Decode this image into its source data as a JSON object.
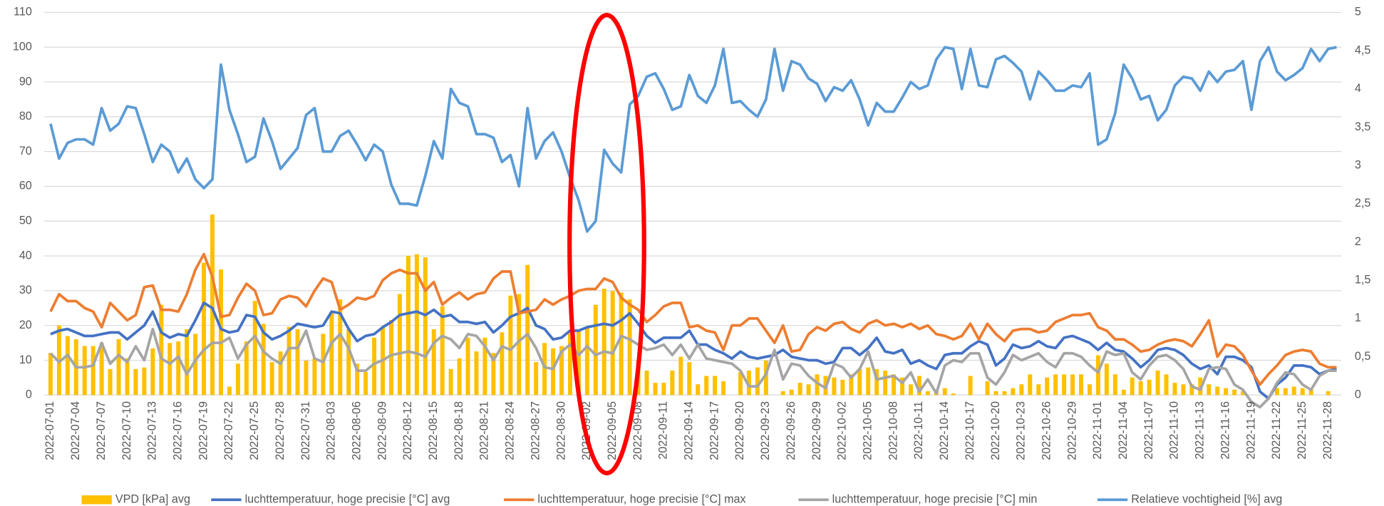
{
  "chart_data": {
    "type": "bar-line",
    "categories": [
      "2022-07-01",
      null,
      null,
      "2022-07-04",
      null,
      null,
      "2022-07-07",
      null,
      null,
      "2022-07-10",
      null,
      null,
      "2022-07-13",
      null,
      null,
      "2022-07-16",
      null,
      null,
      "2022-07-19",
      null,
      null,
      "2022-07-22",
      null,
      null,
      "2022-07-25",
      null,
      null,
      "2022-07-28",
      null,
      null,
      "2022-07-31",
      null,
      null,
      "2022-08-03",
      null,
      null,
      "2022-08-06",
      null,
      null,
      "2022-08-09",
      null,
      null,
      "2022-08-12",
      null,
      null,
      "2022-08-15",
      null,
      null,
      "2022-08-18",
      null,
      null,
      "2022-08-21",
      null,
      null,
      "2022-08-24",
      null,
      null,
      "2022-08-27",
      null,
      null,
      "2022-08-30",
      null,
      null,
      "2022-09-02",
      null,
      null,
      "2022-09-05",
      null,
      null,
      "2022-09-08",
      null,
      null,
      "2022-09-11",
      null,
      null,
      "2022-09-14",
      null,
      null,
      "2022-09-17",
      null,
      null,
      "2022-09-20",
      null,
      null,
      "2022-09-23",
      null,
      null,
      "2022-09-26",
      null,
      null,
      "2022-09-29",
      null,
      null,
      "2022-10-02",
      null,
      null,
      "2022-10-05",
      null,
      null,
      "2022-10-08",
      null,
      null,
      "2022-10-11",
      null,
      null,
      "2022-10-14",
      null,
      null,
      "2022-10-17",
      null,
      null,
      "2022-10-20",
      null,
      null,
      "2022-10-23",
      null,
      null,
      "2022-10-26",
      null,
      null,
      "2022-10-29",
      null,
      null,
      "2022-11-01",
      null,
      null,
      "2022-11-04",
      null,
      null,
      "2022-11-07",
      null,
      null,
      "2022-11-10",
      null,
      null,
      "2022-11-13",
      null,
      null,
      "2022-11-16",
      null,
      null,
      "2022-11-19",
      null,
      null,
      "2022-11-22",
      null,
      null,
      "2022-11-25",
      null,
      null,
      "2022-11-28",
      null
    ],
    "ylim": [
      0,
      110
    ],
    "yticks": [
      0,
      10,
      20,
      30,
      40,
      50,
      60,
      70,
      80,
      90,
      100,
      110
    ],
    "y2lim": [
      0,
      5
    ],
    "y2ticks": [
      0,
      {
        "value": 0.5,
        "label": "0,5"
      },
      1,
      {
        "value": 1.5,
        "label": "1,5"
      },
      2,
      {
        "value": 2.5,
        "label": "2,5"
      },
      3,
      {
        "value": 3.5,
        "label": "3,5"
      },
      4,
      {
        "value": 4.5,
        "label": "4,5"
      },
      5
    ],
    "grid": true,
    "legend": "bottom",
    "series": [
      {
        "name": "VPD [kPa] avg",
        "type": "bar",
        "axis": "y2",
        "color": "#ffc000",
        "values": [
          0.55,
          0.91,
          0.77,
          0.73,
          0.64,
          0.64,
          0.68,
          0.34,
          0.73,
          0.48,
          0.34,
          0.36,
          0.61,
          1.18,
          0.68,
          0.7,
          0.86,
          0.8,
          1.73,
          2.36,
          1.64,
          0.11,
          0.41,
          0.7,
          1.23,
          0.93,
          0.43,
          0.57,
          0.89,
          0.86,
          0.45,
          0.48,
          0.8,
          1.07,
          1.25,
          0.86,
          0.41,
          0.3,
          0.75,
          0.89,
          0.98,
          1.32,
          1.82,
          1.84,
          1.8,
          0.86,
          1.16,
          0.34,
          0.48,
          0.75,
          0.57,
          0.75,
          0.55,
          0.82,
          1.3,
          1.32,
          1.7,
          0.43,
          0.68,
          0.61,
          0.64,
          0.82,
          0.84,
          0.89,
          1.18,
          1.39,
          1.36,
          1.34,
          1.25,
          0.45,
          0.32,
          0.16,
          0.16,
          0.32,
          0.5,
          0.43,
          0.14,
          0.25,
          0.25,
          0.18,
          0,
          0.3,
          0.32,
          0.36,
          0.45,
          0,
          0.05,
          0.07,
          0.16,
          0.14,
          0.27,
          0.25,
          0.23,
          0.2,
          0.27,
          0.34,
          0.36,
          0.34,
          0.32,
          0.27,
          0.23,
          0.14,
          0.25,
          0.05,
          0.05,
          0.09,
          0.02,
          0,
          0.25,
          0,
          0.18,
          0.05,
          0.05,
          0.09,
          0.14,
          0.27,
          0.14,
          0.23,
          0.27,
          0.27,
          0.27,
          0.27,
          0.14,
          0.52,
          0.41,
          0.27,
          0.07,
          0.23,
          0.18,
          0.2,
          0.32,
          0.27,
          0.16,
          0.14,
          0.14,
          0.23,
          0.14,
          0.11,
          0.09,
          0.07,
          0.05,
          0,
          0,
          0,
          0.09,
          0.09,
          0.11,
          0.09,
          0.07,
          0,
          0.05,
          0
        ]
      },
      {
        "name": "luchttemperatuur, hoge precisie [°C] avg",
        "type": "line",
        "color": "#4472c4",
        "values": [
          17.5,
          18.5,
          19,
          18,
          17,
          17,
          17.5,
          18,
          18,
          16,
          18,
          20,
          24,
          18,
          16.5,
          17.5,
          17,
          21.5,
          26.5,
          25,
          19,
          18,
          18.5,
          23,
          22.5,
          18,
          16,
          17,
          18.5,
          20.5,
          20,
          19.5,
          20,
          24,
          23.5,
          19,
          15.5,
          17,
          17.5,
          19.5,
          21,
          23,
          23.5,
          24,
          23,
          24.5,
          22.5,
          23,
          21,
          21,
          20.5,
          21,
          18,
          20,
          22.5,
          23.5,
          25,
          20,
          19,
          16,
          16.5,
          18.5,
          18.5,
          19.5,
          20,
          20.5,
          20,
          21.5,
          23.5,
          20.5,
          17,
          15,
          16.5,
          16.5,
          16.5,
          18.5,
          14.5,
          14.5,
          13,
          12,
          10.5,
          12.5,
          11,
          10.5,
          11,
          11.5,
          13,
          11,
          10.5,
          10,
          10,
          9,
          9.5,
          13.5,
          13.5,
          11.5,
          13.5,
          16.5,
          12.5,
          12,
          13,
          9,
          10,
          8.5,
          7.5,
          11.5,
          12,
          12,
          14,
          15.5,
          14.5,
          8.5,
          10.5,
          14.5,
          13.5,
          14,
          15.5,
          14,
          13.5,
          16.5,
          17,
          16,
          15,
          13,
          15,
          13,
          12.5,
          10.5,
          8,
          10,
          13,
          13.5,
          13,
          11.5,
          9,
          7.5,
          8.5,
          6,
          11,
          11,
          10,
          8,
          1,
          -1,
          3,
          5,
          8.5,
          8.5,
          8,
          6,
          7,
          7.5
        ]
      },
      {
        "name": "luchttemperatuur, hoge precisie [°C] max",
        "type": "line",
        "color": "#ed7d31",
        "values": [
          24,
          29,
          27,
          27,
          25,
          24,
          19.5,
          26.5,
          24,
          21.5,
          23,
          31,
          31.5,
          24.5,
          24.5,
          24,
          29,
          36,
          40.5,
          34,
          22.5,
          23,
          28,
          32,
          30,
          23,
          23.5,
          27.5,
          28.5,
          28,
          25.5,
          30,
          33.5,
          32.5,
          24.5,
          26,
          28,
          27.5,
          28.5,
          33,
          35,
          36,
          35,
          35,
          30,
          32.5,
          26,
          28,
          29.5,
          27.5,
          29,
          29.5,
          33.5,
          35.5,
          35.5,
          23.5,
          24,
          24.5,
          27.5,
          26,
          27.5,
          28.5,
          30,
          30.5,
          30.5,
          33.5,
          32.5,
          28,
          26,
          24.5,
          21,
          23,
          25.5,
          26.5,
          26.5,
          19.5,
          20,
          18.5,
          18,
          13,
          20,
          20,
          22,
          22,
          18.5,
          15,
          20,
          12.5,
          13,
          17.5,
          19.5,
          18.5,
          20.5,
          21,
          19,
          18,
          20.5,
          21.5,
          20,
          20.5,
          19.5,
          20.5,
          19,
          20,
          17.5,
          17,
          16,
          17,
          20.5,
          16,
          20.5,
          17.5,
          15.5,
          18.5,
          19,
          19,
          18,
          18.5,
          21,
          22,
          23,
          23,
          23.5,
          19.5,
          18.5,
          16,
          16,
          14.5,
          12.5,
          13,
          14.5,
          15.5,
          16,
          15.5,
          14,
          17.5,
          21.5,
          11,
          14.5,
          14,
          11.5,
          7,
          3,
          6,
          8.5,
          11.5,
          12.5,
          13,
          12.5,
          9,
          8,
          8
        ]
      },
      {
        "name": "luchttemperatuur, hoge precisie [°C] min",
        "type": "line",
        "color": "#a5a5a5",
        "values": [
          12,
          9.5,
          11.5,
          8,
          8,
          8.5,
          15,
          9,
          11.5,
          9.5,
          14,
          10,
          19,
          10.5,
          9,
          11,
          6,
          10,
          13,
          15,
          15,
          16.5,
          10.5,
          14.5,
          17,
          12.5,
          10.5,
          9,
          13.5,
          13.5,
          18.5,
          10.5,
          9.5,
          15,
          17.5,
          13.5,
          7,
          7,
          9,
          10,
          11.5,
          12,
          12.5,
          12,
          11,
          15,
          17,
          16,
          13.5,
          17.5,
          17,
          14,
          10,
          14,
          13,
          15.5,
          17.5,
          13.5,
          8,
          7.5,
          12.5,
          14.5,
          11.5,
          14,
          11.5,
          12.5,
          12,
          17,
          16,
          14.5,
          13,
          13.5,
          14.5,
          11.5,
          14.5,
          10.5,
          14.5,
          10.5,
          10,
          9.5,
          9,
          7,
          2.5,
          2.5,
          6,
          13,
          4.5,
          9,
          8.5,
          5.5,
          3.5,
          2,
          9,
          8,
          5,
          7.5,
          12.5,
          4.5,
          5,
          5.5,
          3.5,
          6.5,
          1,
          4.5,
          0.5,
          8.5,
          10,
          9.5,
          12,
          12,
          5,
          3,
          6.5,
          11.5,
          10,
          11,
          12,
          9.5,
          8,
          12,
          12,
          11,
          8.5,
          6.5,
          12.5,
          11.5,
          12,
          6.5,
          4.5,
          8.5,
          11,
          11.5,
          10,
          7.5,
          2.5,
          1.5,
          7.5,
          8,
          7.5,
          3,
          1.5,
          -2,
          -3.5,
          -1,
          3.5,
          6.5,
          6,
          3,
          1.5,
          5.5,
          7,
          7
        ]
      },
      {
        "name": "Relatieve vochtigheid [%] avg",
        "type": "line",
        "color": "#5b9bd5",
        "values": [
          78,
          68,
          72.5,
          73.5,
          73.5,
          72,
          82.5,
          76,
          78,
          83,
          82.5,
          75,
          67,
          72,
          70,
          64,
          68,
          62,
          59.5,
          62,
          95,
          82,
          75,
          67,
          68.5,
          79.5,
          73,
          65,
          68,
          71,
          80.5,
          82.5,
          70,
          70,
          74.5,
          76,
          72,
          67.5,
          72,
          70,
          60.5,
          55,
          55,
          54.5,
          63,
          73,
          68,
          88,
          84,
          83,
          75,
          75,
          74,
          67,
          69,
          60,
          82.5,
          68,
          73,
          75.5,
          70,
          62.5,
          56,
          47,
          50,
          70.5,
          66.5,
          64,
          83.5,
          86,
          91.5,
          92.5,
          88,
          82,
          83,
          92,
          86,
          84,
          89,
          99.5,
          84,
          84.5,
          82,
          80,
          85,
          99.5,
          87.5,
          96,
          95,
          91,
          89.5,
          84.5,
          88.5,
          87.5,
          90.5,
          85,
          77.5,
          84,
          81.5,
          81.5,
          85.5,
          90,
          88,
          89,
          96.5,
          100,
          99.5,
          88,
          99.5,
          89,
          88.5,
          96.5,
          97.5,
          95.5,
          93,
          85,
          93,
          90.5,
          87.5,
          87.5,
          89,
          88.5,
          92.5,
          72,
          73.5,
          81,
          95,
          91,
          85,
          86,
          79,
          82,
          89,
          91.5,
          91,
          87.5,
          93,
          90,
          93,
          93.5,
          96,
          82,
          96,
          100,
          93,
          90.5,
          92,
          94,
          99.5,
          96,
          99.5,
          100
        ]
      }
    ]
  }
}
